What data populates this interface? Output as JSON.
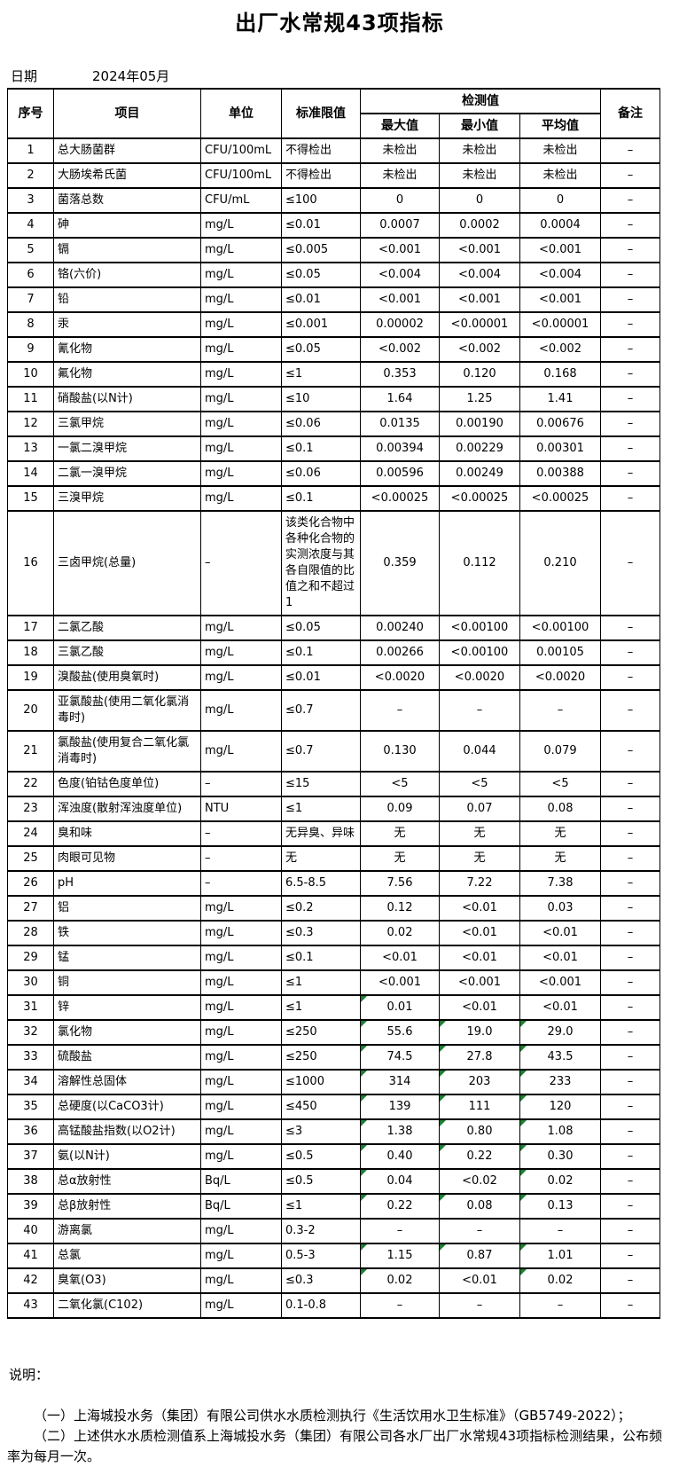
{
  "title": "出厂水常规43项指标",
  "date": {
    "label": "日期",
    "value": "2024年05月"
  },
  "colors": {
    "flag_green": "#1e7e34"
  },
  "table": {
    "headers": {
      "no": "序号",
      "item": "项目",
      "unit": "单位",
      "limit": "标准限值",
      "detection": "检测值",
      "max": "最大值",
      "min": "最小值",
      "avg": "平均值",
      "remark": "备注"
    },
    "rows": [
      {
        "no": "1",
        "item": "总大肠菌群",
        "unit": "CFU/100mL",
        "limit": "不得检出",
        "max": "未检出",
        "min": "未检出",
        "avg": "未检出",
        "remark": "–",
        "flags": [
          false,
          false,
          false
        ]
      },
      {
        "no": "2",
        "item": "大肠埃希氏菌",
        "unit": "CFU/100mL",
        "limit": "不得检出",
        "max": "未检出",
        "min": "未检出",
        "avg": "未检出",
        "remark": "–",
        "flags": [
          false,
          false,
          false
        ]
      },
      {
        "no": "3",
        "item": "菌落总数",
        "unit": "CFU/mL",
        "limit": "≤100",
        "max": "0",
        "min": "0",
        "avg": "0",
        "remark": "–",
        "flags": [
          false,
          false,
          false
        ]
      },
      {
        "no": "4",
        "item": "砷",
        "unit": "mg/L",
        "limit": "≤0.01",
        "max": "0.0007",
        "min": "0.0002",
        "avg": "0.0004",
        "remark": "–",
        "flags": [
          false,
          false,
          false
        ]
      },
      {
        "no": "5",
        "item": "镉",
        "unit": "mg/L",
        "limit": "≤0.005",
        "max": "<0.001",
        "min": "<0.001",
        "avg": "<0.001",
        "remark": "–",
        "flags": [
          false,
          false,
          false
        ]
      },
      {
        "no": "6",
        "item": "铬(六价)",
        "unit": "mg/L",
        "limit": "≤0.05",
        "max": "<0.004",
        "min": "<0.004",
        "avg": "<0.004",
        "remark": "–",
        "flags": [
          false,
          false,
          false
        ]
      },
      {
        "no": "7",
        "item": "铅",
        "unit": "mg/L",
        "limit": "≤0.01",
        "max": "<0.001",
        "min": "<0.001",
        "avg": "<0.001",
        "remark": "–",
        "flags": [
          false,
          false,
          false
        ]
      },
      {
        "no": "8",
        "item": "汞",
        "unit": "mg/L",
        "limit": "≤0.001",
        "max": "0.00002",
        "min": "<0.00001",
        "avg": "<0.00001",
        "remark": "–",
        "flags": [
          false,
          false,
          false
        ]
      },
      {
        "no": "9",
        "item": "氰化物",
        "unit": "mg/L",
        "limit": "≤0.05",
        "max": "<0.002",
        "min": "<0.002",
        "avg": "<0.002",
        "remark": "–",
        "flags": [
          false,
          false,
          false
        ]
      },
      {
        "no": "10",
        "item": "氟化物",
        "unit": "mg/L",
        "limit": "≤1",
        "max": "0.353",
        "min": "0.120",
        "avg": "0.168",
        "remark": "–",
        "flags": [
          false,
          false,
          false
        ]
      },
      {
        "no": "11",
        "item": "硝酸盐(以N计)",
        "unit": "mg/L",
        "limit": "≤10",
        "max": "1.64",
        "min": "1.25",
        "avg": "1.41",
        "remark": "–",
        "flags": [
          false,
          false,
          false
        ]
      },
      {
        "no": "12",
        "item": "三氯甲烷",
        "unit": "mg/L",
        "limit": "≤0.06",
        "max": "0.0135",
        "min": "0.00190",
        "avg": "0.00676",
        "remark": "–",
        "flags": [
          false,
          false,
          false
        ]
      },
      {
        "no": "13",
        "item": "一氯二溴甲烷",
        "unit": "mg/L",
        "limit": "≤0.1",
        "max": "0.00394",
        "min": "0.00229",
        "avg": "0.00301",
        "remark": "–",
        "flags": [
          false,
          false,
          false
        ]
      },
      {
        "no": "14",
        "item": "二氯一溴甲烷",
        "unit": "mg/L",
        "limit": "≤0.06",
        "max": "0.00596",
        "min": "0.00249",
        "avg": "0.00388",
        "remark": "–",
        "flags": [
          false,
          false,
          false
        ]
      },
      {
        "no": "15",
        "item": "三溴甲烷",
        "unit": "mg/L",
        "limit": "≤0.1",
        "max": "<0.00025",
        "min": "<0.00025",
        "avg": "<0.00025",
        "remark": "–",
        "flags": [
          false,
          false,
          false
        ]
      },
      {
        "no": "16",
        "item": "三卤甲烷(总量)",
        "unit": "–",
        "limit": "该类化合物中各种化合物的实测浓度与其各自限值的比值之和不超过1",
        "max": "0.359",
        "min": "0.112",
        "avg": "0.210",
        "remark": "–",
        "flags": [
          false,
          false,
          false
        ]
      },
      {
        "no": "17",
        "item": "二氯乙酸",
        "unit": "mg/L",
        "limit": "≤0.05",
        "max": "0.00240",
        "min": "<0.00100",
        "avg": "<0.00100",
        "remark": "–",
        "flags": [
          false,
          false,
          false
        ]
      },
      {
        "no": "18",
        "item": "三氯乙酸",
        "unit": "mg/L",
        "limit": "≤0.1",
        "max": "0.00266",
        "min": "<0.00100",
        "avg": "0.00105",
        "remark": "–",
        "flags": [
          false,
          false,
          false
        ]
      },
      {
        "no": "19",
        "item": "溴酸盐(使用臭氧时)",
        "unit": "mg/L",
        "limit": "≤0.01",
        "max": "<0.0020",
        "min": "<0.0020",
        "avg": "<0.0020",
        "remark": "–",
        "flags": [
          false,
          false,
          false
        ]
      },
      {
        "no": "20",
        "item": "亚氯酸盐(使用二氧化氯消毒时)",
        "unit": "mg/L",
        "limit": "≤0.7",
        "max": "–",
        "min": "–",
        "avg": "–",
        "remark": "–",
        "flags": [
          false,
          false,
          false
        ]
      },
      {
        "no": "21",
        "item": "氯酸盐(使用复合二氧化氯消毒时)",
        "unit": "mg/L",
        "limit": "≤0.7",
        "max": "0.130",
        "min": "0.044",
        "avg": "0.079",
        "remark": "–",
        "flags": [
          false,
          false,
          false
        ]
      },
      {
        "no": "22",
        "item": "色度(铂钴色度单位)",
        "unit": "–",
        "limit": "≤15",
        "max": "<5",
        "min": "<5",
        "avg": "<5",
        "remark": "–",
        "flags": [
          false,
          false,
          false
        ]
      },
      {
        "no": "23",
        "item": "浑浊度(散射浑浊度单位)",
        "unit": "NTU",
        "limit": "≤1",
        "max": "0.09",
        "min": "0.07",
        "avg": "0.08",
        "remark": "–",
        "flags": [
          false,
          false,
          false
        ]
      },
      {
        "no": "24",
        "item": "臭和味",
        "unit": "–",
        "limit": "无异臭、异味",
        "max": "无",
        "min": "无",
        "avg": "无",
        "remark": "–",
        "flags": [
          false,
          false,
          false
        ]
      },
      {
        "no": "25",
        "item": "肉眼可见物",
        "unit": "–",
        "limit": "无",
        "max": "无",
        "min": "无",
        "avg": "无",
        "remark": "–",
        "flags": [
          false,
          false,
          false
        ]
      },
      {
        "no": "26",
        "item": "pH",
        "unit": "–",
        "limit": "6.5-8.5",
        "max": "7.56",
        "min": "7.22",
        "avg": "7.38",
        "remark": "–",
        "flags": [
          false,
          false,
          false
        ]
      },
      {
        "no": "27",
        "item": "铝",
        "unit": "mg/L",
        "limit": "≤0.2",
        "max": "0.12",
        "min": "<0.01",
        "avg": "0.03",
        "remark": "–",
        "flags": [
          false,
          false,
          false
        ]
      },
      {
        "no": "28",
        "item": "铁",
        "unit": "mg/L",
        "limit": "≤0.3",
        "max": "0.02",
        "min": "<0.01",
        "avg": "<0.01",
        "remark": "–",
        "flags": [
          false,
          false,
          false
        ]
      },
      {
        "no": "29",
        "item": "锰",
        "unit": "mg/L",
        "limit": "≤0.1",
        "max": "<0.01",
        "min": "<0.01",
        "avg": "<0.01",
        "remark": "–",
        "flags": [
          false,
          false,
          false
        ]
      },
      {
        "no": "30",
        "item": "铜",
        "unit": "mg/L",
        "limit": "≤1",
        "max": "<0.001",
        "min": "<0.001",
        "avg": "<0.001",
        "remark": "–",
        "flags": [
          false,
          false,
          false
        ]
      },
      {
        "no": "31",
        "item": "锌",
        "unit": "mg/L",
        "limit": "≤1",
        "max": "0.01",
        "min": "<0.01",
        "avg": "<0.01",
        "remark": "–",
        "flags": [
          true,
          false,
          false
        ]
      },
      {
        "no": "32",
        "item": "氯化物",
        "unit": "mg/L",
        "limit": "≤250",
        "max": "55.6",
        "min": "19.0",
        "avg": "29.0",
        "remark": "–",
        "flags": [
          true,
          true,
          true
        ]
      },
      {
        "no": "33",
        "item": "硫酸盐",
        "unit": "mg/L",
        "limit": "≤250",
        "max": "74.5",
        "min": "27.8",
        "avg": "43.5",
        "remark": "–",
        "flags": [
          true,
          true,
          true
        ]
      },
      {
        "no": "34",
        "item": "溶解性总固体",
        "unit": "mg/L",
        "limit": "≤1000",
        "max": "314",
        "min": "203",
        "avg": "233",
        "remark": "–",
        "flags": [
          true,
          true,
          true
        ]
      },
      {
        "no": "35",
        "item": "总硬度(以CaCO3计)",
        "unit": "mg/L",
        "limit": "≤450",
        "max": "139",
        "min": "111",
        "avg": "120",
        "remark": "–",
        "flags": [
          true,
          true,
          true
        ]
      },
      {
        "no": "36",
        "item": "高锰酸盐指数(以O2计)",
        "unit": "mg/L",
        "limit": "≤3",
        "max": "1.38",
        "min": "0.80",
        "avg": "1.08",
        "remark": "–",
        "flags": [
          true,
          true,
          true
        ]
      },
      {
        "no": "37",
        "item": "氨(以N计)",
        "unit": "mg/L",
        "limit": "≤0.5",
        "max": "0.40",
        "min": "0.22",
        "avg": "0.30",
        "remark": "–",
        "flags": [
          true,
          true,
          true
        ]
      },
      {
        "no": "38",
        "item": "总α放射性",
        "unit": "Bq/L",
        "limit": "≤0.5",
        "max": "0.04",
        "min": "<0.02",
        "avg": "0.02",
        "remark": "–",
        "flags": [
          true,
          false,
          true
        ]
      },
      {
        "no": "39",
        "item": "总β放射性",
        "unit": "Bq/L",
        "limit": "≤1",
        "max": "0.22",
        "min": "0.08",
        "avg": "0.13",
        "remark": "–",
        "flags": [
          true,
          true,
          true
        ]
      },
      {
        "no": "40",
        "item": "游离氯",
        "unit": "mg/L",
        "limit": "0.3-2",
        "max": "–",
        "min": "–",
        "avg": "–",
        "remark": "–",
        "flags": [
          false,
          false,
          false
        ]
      },
      {
        "no": "41",
        "item": "总氯",
        "unit": "mg/L",
        "limit": "0.5-3",
        "max": "1.15",
        "min": "0.87",
        "avg": "1.01",
        "remark": "–",
        "flags": [
          true,
          true,
          true
        ]
      },
      {
        "no": "42",
        "item": "臭氧(O3)",
        "unit": "mg/L",
        "limit": "≤0.3",
        "max": "0.02",
        "min": "<0.01",
        "avg": "0.02",
        "remark": "–",
        "flags": [
          true,
          false,
          true
        ]
      },
      {
        "no": "43",
        "item": "二氧化氯(C102)",
        "unit": "mg/L",
        "limit": "0.1-0.8",
        "max": "–",
        "min": "–",
        "avg": "–",
        "remark": "–",
        "flags": [
          false,
          false,
          false
        ]
      }
    ]
  },
  "notes": {
    "title": "说明：",
    "line1": "（一）上海城投水务（集团）有限公司供水水质检测执行《生活饮用水卫生标准》（GB5749-2022）；",
    "line2": "（二）上述供水水质检测值系上海城投水务（集团）有限公司各水厂出厂水常规43项指标检测结果，公布频率为每月一次。"
  }
}
